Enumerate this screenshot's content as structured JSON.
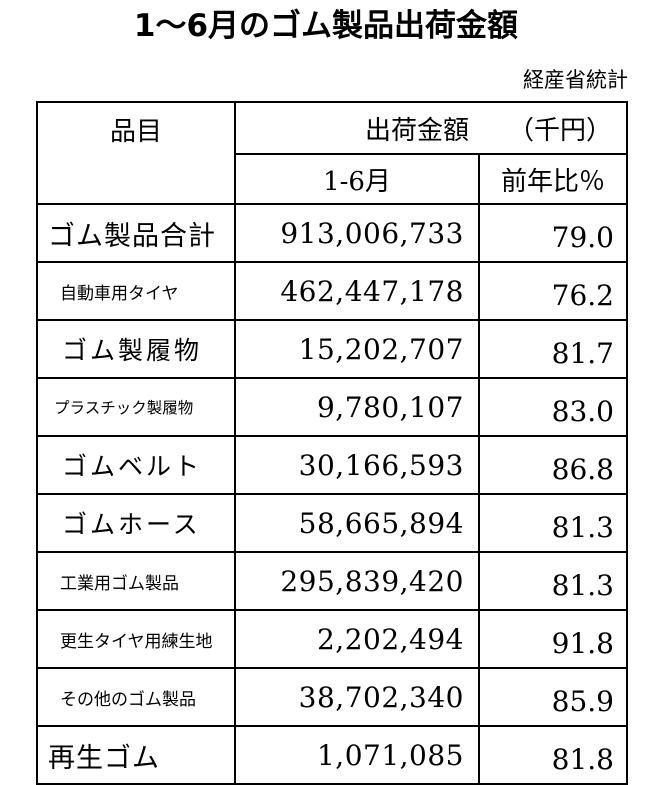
{
  "title": "1～6月のゴム製品出荷金額",
  "source": "経産省統計",
  "table": {
    "header": {
      "item": "品目",
      "amount": "出荷金額　　（千円）",
      "period": "1-6月",
      "yoy": "前年比％"
    },
    "rows": [
      {
        "name": "ゴム製品合計",
        "value": "913,006,733",
        "yoy": "79.0"
      },
      {
        "name": "自動車用タイヤ",
        "value": "462,447,178",
        "yoy": "76.2"
      },
      {
        "name": "ゴム製履物",
        "value": "15,202,707",
        "yoy": "81.7"
      },
      {
        "name": "プラスチック製履物",
        "value": "9,780,107",
        "yoy": "83.0"
      },
      {
        "name": "ゴムベルト",
        "value": "30,166,593",
        "yoy": "86.8"
      },
      {
        "name": "ゴムホース",
        "value": "58,665,894",
        "yoy": "81.3"
      },
      {
        "name": "工業用ゴム製品",
        "value": "295,839,420",
        "yoy": "81.3"
      },
      {
        "name": "更生タイヤ用練生地",
        "value": "2,202,494",
        "yoy": "91.8"
      },
      {
        "name": "その他のゴム製品",
        "value": "38,702,340",
        "yoy": "85.9"
      },
      {
        "name": "再生ゴム",
        "value": "1,071,085",
        "yoy": "81.8"
      }
    ]
  }
}
